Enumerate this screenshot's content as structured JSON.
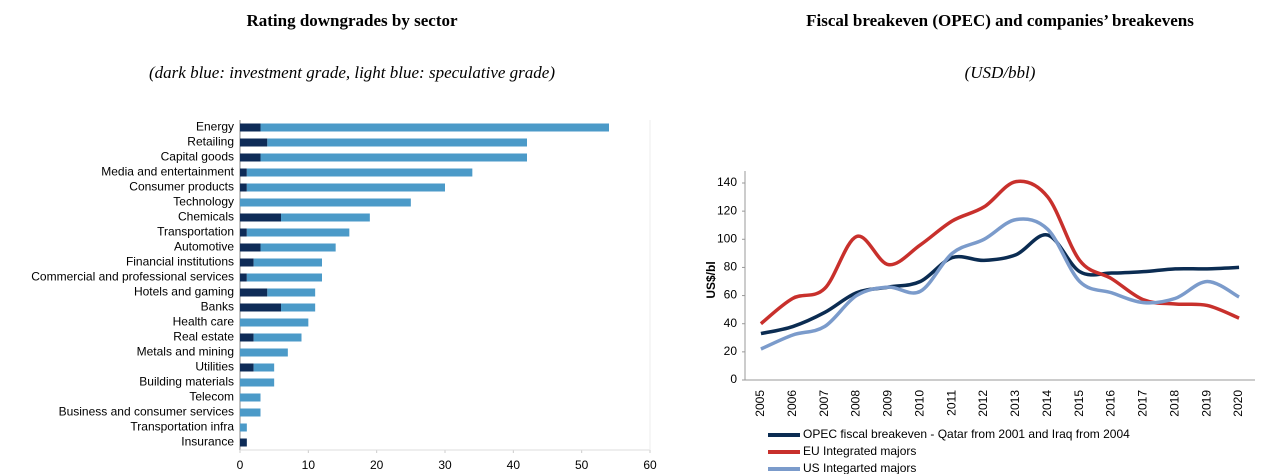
{
  "chart_data": [
    {
      "type": "hbar",
      "title": "Rating downgrades by sector",
      "subtitle": "(dark blue: investment grade, light blue: speculative grade)",
      "categories": [
        "Energy",
        "Retailing",
        "Capital goods",
        "Media and entertainment",
        "Consumer products",
        "Technology",
        "Chemicals",
        "Transportation",
        "Automotive",
        "Financial institutions",
        "Commercial and professional services",
        "Hotels and gaming",
        "Banks",
        "Health care",
        "Real estate",
        "Metals and mining",
        "Utilities",
        "Building materials",
        "Telecom",
        "Business and consumer services",
        "Transportation infra",
        "Insurance"
      ],
      "series": [
        {
          "color": "#0d2b57",
          "values": [
            3,
            4,
            3,
            1,
            1,
            0,
            6,
            1,
            3,
            2,
            1,
            4,
            6,
            0,
            2,
            0,
            2,
            0,
            0,
            0,
            0,
            1
          ]
        },
        {
          "color": "#4b9ac8",
          "values": [
            51,
            38,
            39,
            33,
            29,
            25,
            13,
            15,
            11,
            10,
            11,
            7,
            5,
            10,
            7,
            7,
            3,
            5,
            3,
            3,
            1,
            0
          ]
        }
      ],
      "xlim": [
        0,
        60
      ],
      "xticks": [
        0,
        10,
        20,
        30,
        40,
        50,
        60
      ]
    },
    {
      "type": "line",
      "title": "Fiscal breakeven (OPEC) and companies’ breakevens",
      "subtitle": "(USD/bbl)",
      "ylabel": "US$/bl",
      "categories": [
        "2005",
        "2006",
        "2007",
        "2008",
        "2009",
        "2010",
        "2011",
        "2012",
        "2013",
        "2014",
        "2015",
        "2016",
        "2017",
        "2018",
        "2019",
        "2020"
      ],
      "series": [
        {
          "name": "OPEC fiscal breakeven - Qatar from 2001 and Iraq from 2004",
          "color": "#0b2c52",
          "values": [
            33,
            38,
            48,
            62,
            66,
            70,
            87,
            85,
            89,
            103,
            77,
            76,
            77,
            79,
            79,
            80
          ]
        },
        {
          "name": "EU Integrated majors",
          "color": "#c8302c",
          "values": [
            40,
            58,
            65,
            102,
            82,
            96,
            113,
            123,
            141,
            130,
            85,
            72,
            57,
            54,
            53,
            44
          ]
        },
        {
          "name": "US Integarted majors",
          "color": "#7b9bcb",
          "values": [
            22,
            32,
            38,
            60,
            66,
            63,
            90,
            100,
            114,
            107,
            70,
            62,
            55,
            58,
            70,
            59
          ]
        }
      ],
      "ylim": [
        0,
        140
      ],
      "yticks": [
        0,
        20,
        40,
        60,
        80,
        100,
        120,
        140
      ]
    }
  ]
}
